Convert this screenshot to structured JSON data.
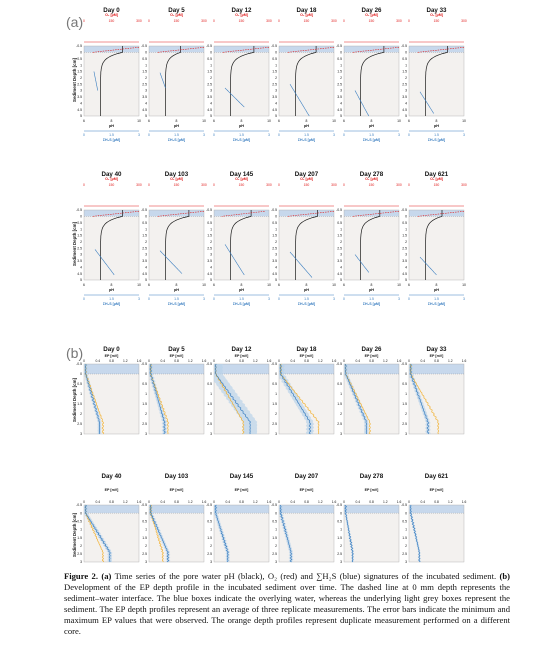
{
  "figure": {
    "panel_a": {
      "label": "(a)",
      "days": [
        "Day 0",
        "Day 5",
        "Day 12",
        "Day 18",
        "Day 26",
        "Day 33",
        "Day 40",
        "Day 103",
        "Day 145",
        "Day 207",
        "Day 278",
        "Day 621"
      ],
      "o2_axis_label": "O₂ [µM]",
      "o2_ticks": [
        "0",
        "150",
        "300"
      ],
      "ph_axis_label": "pH",
      "ph_ticks": [
        "6",
        "8",
        "10"
      ],
      "h2s_axis_label": "ΣH₂S [µM]",
      "h2s_ticks": [
        "0",
        "1.5",
        "3"
      ],
      "ylabel": "Sediment Depth [cm]",
      "depth_ticks": [
        "-0.5",
        "0",
        "0.5",
        "1",
        "1.5",
        "2",
        "2.5",
        "3",
        "3.5",
        "4",
        "4.5",
        "5"
      ]
    },
    "panel_b": {
      "label": "(b)",
      "days": [
        "Day 0",
        "Day 5",
        "Day 12",
        "Day 18",
        "Day 26",
        "Day 33",
        "Day 40",
        "Day 103",
        "Day 145",
        "Day 207",
        "Day 278",
        "Day 621"
      ],
      "ep_axis_label": "EP [mV]",
      "ep_ticks": [
        "0",
        "0.4",
        "0.8",
        "1.2",
        "1.6"
      ],
      "ylabel": "Sediment Depth [cm]",
      "depth_ticks": [
        "-0.5",
        "0",
        "0.5",
        "1",
        "1.5",
        "2",
        "2.5",
        "3"
      ]
    },
    "colors": {
      "ph": "#1a1a1a",
      "o2": "#e02020",
      "h2s": "#3a7ec0",
      "ep_mean": "#3a7ec0",
      "ep_duplicate": "#f2b234",
      "water_box": "#c7d8ec",
      "sediment_box": "#f3f1ef"
    }
  },
  "caption": {
    "label": "Figure 2.",
    "a_tag": "(a)",
    "a_text": " Time series of the pore water pH (black), O₂ (red) and ∑H₂S (blue) signatures of the incubated sediment. ",
    "b_tag": "(b)",
    "b_text": " Development of the EP depth profile in the incubated sediment over time. The dashed line at 0 mm depth represents the sediment–water interface. The blue boxes indicate the overlying water, whereas the underlying light grey boxes represent the sediment. The EP depth profiles represent an average of three replicate measurements. The error bars indicate the minimum and maximum EP values that were observed. The orange depth profiles represent duplicate measurement performed on a different core."
  }
}
